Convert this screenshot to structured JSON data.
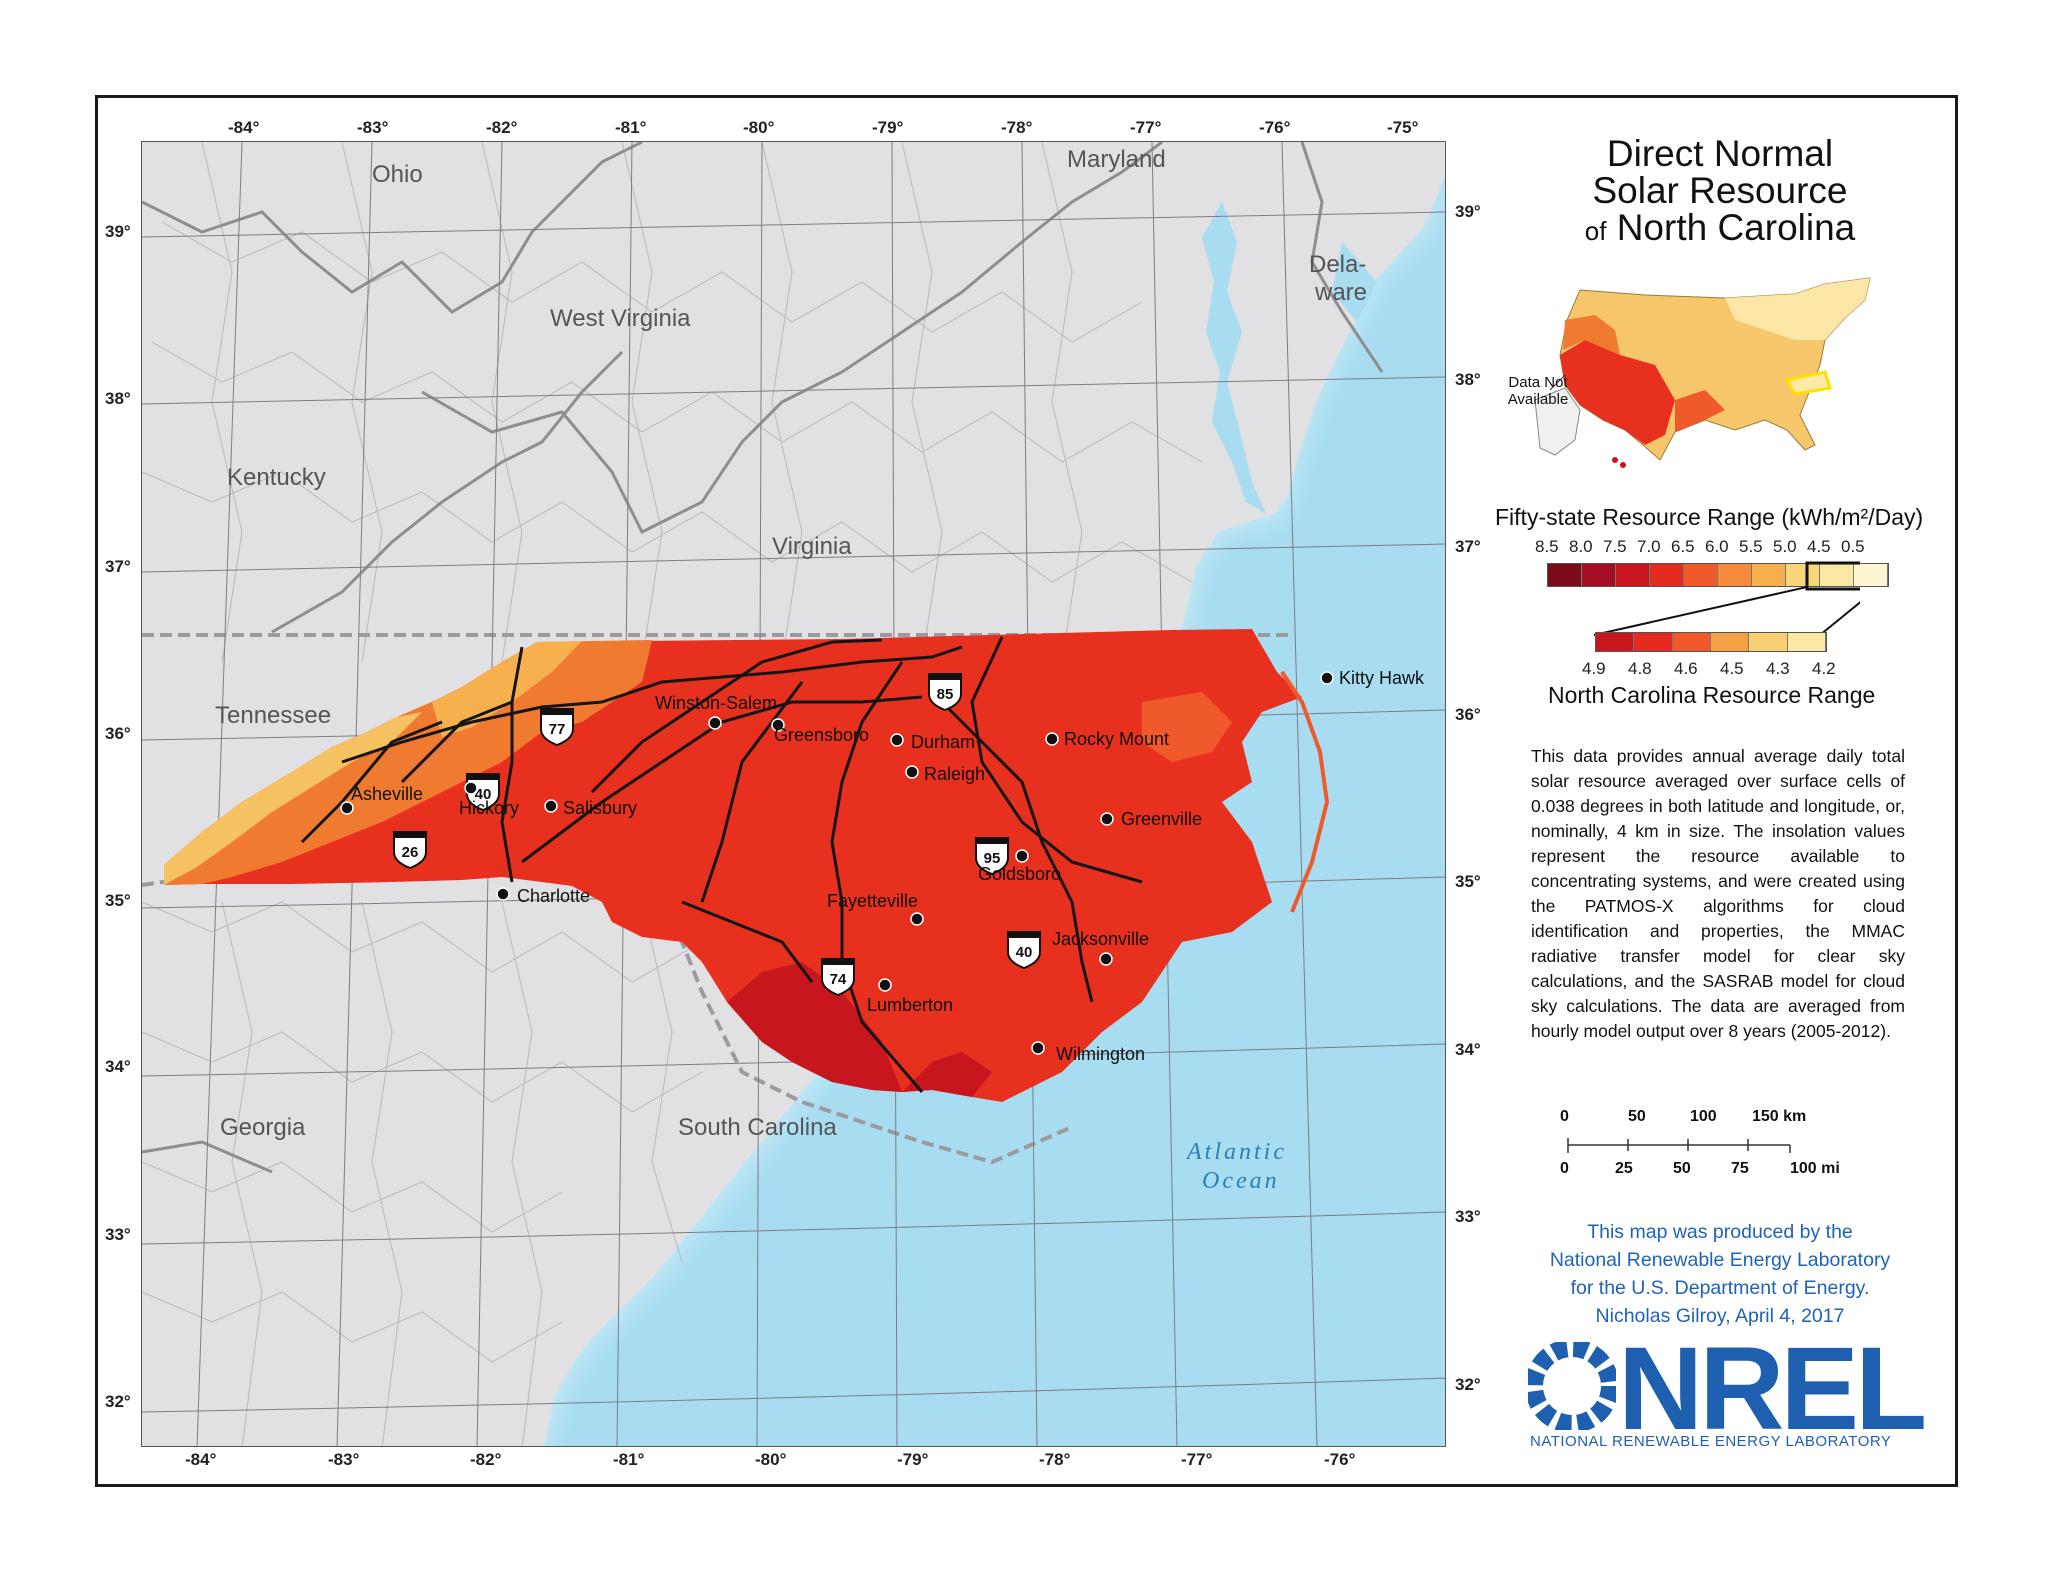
{
  "title": {
    "line1": "Direct Normal",
    "line2": "Solar Resource",
    "of": "of",
    "line3": "North Carolina"
  },
  "inset": {
    "not_available_line1": "Data Not",
    "not_available_line2": "Available"
  },
  "fifty_state": {
    "title": "Fifty-state Resource Range (kWh/m²/Day)",
    "values": [
      "8.5",
      "8.0",
      "7.5",
      "7.0",
      "6.5",
      "6.0",
      "5.5",
      "5.0",
      "4.5",
      "0.5"
    ],
    "colors": [
      "#7a0a1c",
      "#a50f24",
      "#c8161f",
      "#e32b20",
      "#f05a2a",
      "#f48a3a",
      "#f6b04e",
      "#f8d578",
      "#fae7a2",
      "#fdf5d0"
    ]
  },
  "nc_range": {
    "title": "North Carolina Resource Range",
    "values": [
      "4.9",
      "4.8",
      "4.6",
      "4.5",
      "4.3",
      "4.2"
    ],
    "colors": [
      "#c8161f",
      "#e32b20",
      "#f05a2a",
      "#f6a046",
      "#f8cf72",
      "#fae7a2"
    ]
  },
  "description": "This data provides annual average daily total solar resource averaged over surface cells of 0.038 degrees in both latitude and longitude, or, nominally, 4 km in size. The insolation values represent the resource available to concentrating systems, and were created using the PATMOS-X algorithms for cloud identification and properties, the MMAC radiative transfer model for clear sky calculations, and the SASRAB model for cloud sky calculations. The data are averaged from hourly model output over 8 years (2005-2012).",
  "scale_bar": {
    "km": [
      "0",
      "50",
      "100",
      "150 km"
    ],
    "mi": [
      "0",
      "25",
      "50",
      "75",
      "100 mi"
    ]
  },
  "credit": {
    "line1": "This map was produced by the",
    "line2": "National Renewable Energy Laboratory",
    "line3": "for the U.S. Department of Energy.",
    "line4": "Nicholas Gilroy,   April 4, 2017"
  },
  "logo": {
    "word": "NREL",
    "subtitle": "NATIONAL RENEWABLE ENERGY LABORATORY"
  },
  "top_longitudes": [
    "-84°",
    "-83°",
    "-82°",
    "-81°",
    "-80°",
    "-79°",
    "-78°",
    "-77°",
    "-76°",
    "-75°"
  ],
  "bottom_longitudes": [
    "-84°",
    "-83°",
    "-82°",
    "-81°",
    "-80°",
    "-79°",
    "-78°",
    "-77°",
    "-76°"
  ],
  "left_latitudes": [
    "39°",
    "38°",
    "37°",
    "36°",
    "35°",
    "34°",
    "33°",
    "32°"
  ],
  "right_latitudes": [
    "39°",
    "38°",
    "37°",
    "36°",
    "35°",
    "34°",
    "33°",
    "32°"
  ],
  "states": {
    "ohio": "Ohio",
    "maryland": "Maryland",
    "delaware_1": "Dela-",
    "delaware_2": "ware",
    "west_virginia": "West Virginia",
    "kentucky": "Kentucky",
    "virginia": "Virginia",
    "tennessee": "Tennessee",
    "georgia": "Georgia",
    "south_carolina": "South Carolina"
  },
  "ocean": {
    "line1": "Atlantic",
    "line2": "Ocean"
  },
  "cities": [
    "Winston-Salem",
    "Greensboro",
    "Durham",
    "Raleigh",
    "Rocky Mount",
    "Kitty Hawk",
    "Asheville",
    "Hickory",
    "Salisbury",
    "Greenville",
    "Goldsboro",
    "Charlotte",
    "Fayetteville",
    "Jacksonville",
    "Lumberton",
    "Wilmington"
  ],
  "interstates": [
    "85",
    "77",
    "40",
    "95",
    "26",
    "40",
    "74"
  ]
}
